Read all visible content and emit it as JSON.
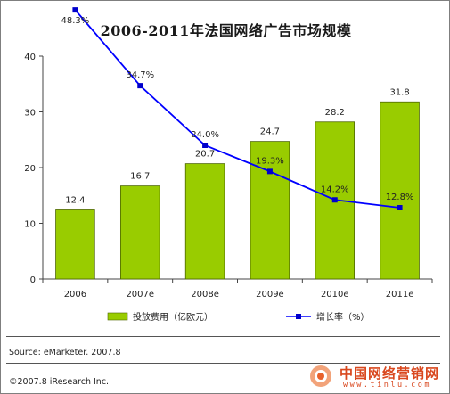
{
  "chart_data": {
    "type": "bar",
    "title": "2006-2011年法国网络广告市场规模",
    "categories": [
      "2006",
      "2007e",
      "2008e",
      "2009e",
      "2010e",
      "2011e"
    ],
    "ylim": [
      0,
      40
    ],
    "yticks": [
      0,
      10,
      20,
      30,
      40
    ],
    "series": [
      {
        "name": "投放费用（亿欧元）",
        "type": "bar",
        "values": [
          12.4,
          16.7,
          20.7,
          24.7,
          28.2,
          31.8
        ],
        "labels": [
          "12.4",
          "16.7",
          "20.7",
          "24.7",
          "28.2",
          "31.8"
        ],
        "color": "#99cc00"
      },
      {
        "name": "增长率（%）",
        "type": "line",
        "values": [
          48.3,
          34.7,
          24.0,
          19.3,
          14.2,
          12.8
        ],
        "labels": [
          "48.3%",
          "34.7%",
          "24.0%",
          "19.3%",
          "14.2%",
          "12.8%"
        ],
        "color": "#0000ff"
      }
    ],
    "legend": "bottom",
    "grid": false
  },
  "footer": {
    "source": "Source: eMarketer. 2007.8",
    "copyright": "©2007.8 iResearch Inc."
  },
  "watermark": {
    "name": "中国网络营销网",
    "url": "www.tinlu.com"
  }
}
